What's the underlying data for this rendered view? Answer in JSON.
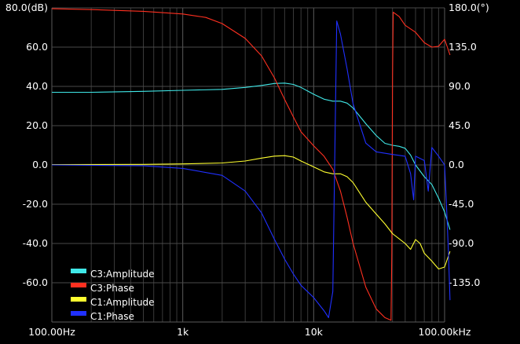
{
  "chart_data": {
    "type": "line",
    "x_scale": "log",
    "xlim": [
      100,
      100000
    ],
    "x_ticks": [
      {
        "value": 100,
        "label": "100.00Hz"
      },
      {
        "value": 1000,
        "label": "1k"
      },
      {
        "value": 10000,
        "label": "10k"
      },
      {
        "value": 100000,
        "label": "100.00kHz"
      }
    ],
    "y_left": {
      "unit_label": "80.0(dB)",
      "ylim": [
        -80,
        80
      ],
      "ticks": [
        80,
        60,
        40,
        20,
        0,
        -20,
        -40,
        -60
      ],
      "tick_labels": [
        "80.0(dB)",
        "60.0",
        "40.0",
        "20.0",
        "0.0",
        "-20.0",
        "-40.0",
        "-60.0"
      ]
    },
    "y_right": {
      "unit_label": "180.0(°)",
      "ylim": [
        -180,
        180
      ],
      "ticks": [
        180,
        135,
        90,
        45,
        0,
        -45,
        -90,
        -135
      ],
      "tick_labels": [
        "180.0(°)",
        "135.0",
        "90.0",
        "45.0",
        "0.0",
        "-45.0",
        "-90.0",
        "-135.0"
      ]
    },
    "grid": true,
    "legend_position": "bottom-left",
    "series": [
      {
        "name": "C3:Amplitude",
        "color": "#40e8e8",
        "axis": "left",
        "points": [
          [
            100,
            37
          ],
          [
            200,
            37
          ],
          [
            500,
            37.5
          ],
          [
            1000,
            38
          ],
          [
            2000,
            38.5
          ],
          [
            3000,
            39.5
          ],
          [
            4000,
            40.5
          ],
          [
            5000,
            41.5
          ],
          [
            6000,
            41.7
          ],
          [
            7000,
            41
          ],
          [
            8000,
            39.5
          ],
          [
            10000,
            36
          ],
          [
            12000,
            33.5
          ],
          [
            14000,
            32.5
          ],
          [
            16000,
            32.5
          ],
          [
            18000,
            31.5
          ],
          [
            20000,
            29
          ],
          [
            25000,
            21
          ],
          [
            30000,
            15
          ],
          [
            35000,
            11
          ],
          [
            40000,
            10
          ],
          [
            45000,
            9.5
          ],
          [
            50000,
            8.5
          ],
          [
            55000,
            5
          ],
          [
            60000,
            0
          ],
          [
            70000,
            -6
          ],
          [
            80000,
            -10
          ],
          [
            90000,
            -17
          ],
          [
            100000,
            -24
          ],
          [
            110000,
            -33
          ]
        ]
      },
      {
        "name": "C3:Phase",
        "color": "#ff3020",
        "axis": "right",
        "points": [
          [
            100,
            179
          ],
          [
            200,
            178
          ],
          [
            500,
            176
          ],
          [
            1000,
            173
          ],
          [
            1500,
            169
          ],
          [
            2000,
            162
          ],
          [
            3000,
            145
          ],
          [
            4000,
            125
          ],
          [
            5000,
            100
          ],
          [
            6000,
            75
          ],
          [
            7000,
            55
          ],
          [
            8000,
            38
          ],
          [
            10000,
            22
          ],
          [
            12000,
            10
          ],
          [
            14000,
            -5
          ],
          [
            16000,
            -30
          ],
          [
            18000,
            -60
          ],
          [
            20000,
            -90
          ],
          [
            25000,
            -140
          ],
          [
            30000,
            -165
          ],
          [
            35000,
            -175
          ],
          [
            39000,
            -178
          ],
          [
            39500,
            -100
          ],
          [
            40000,
            100
          ],
          [
            40500,
            175
          ],
          [
            45000,
            170
          ],
          [
            50000,
            160
          ],
          [
            60000,
            152
          ],
          [
            70000,
            140
          ],
          [
            80000,
            135
          ],
          [
            90000,
            136
          ],
          [
            100000,
            144
          ],
          [
            105000,
            135
          ],
          [
            110000,
            126
          ]
        ]
      },
      {
        "name": "C1:Amplitude",
        "color": "#ffff30",
        "axis": "left",
        "points": [
          [
            100,
            0.2
          ],
          [
            500,
            0.3
          ],
          [
            1000,
            0.5
          ],
          [
            2000,
            1
          ],
          [
            3000,
            2
          ],
          [
            4000,
            3.5
          ],
          [
            5000,
            4.5
          ],
          [
            6000,
            4.7
          ],
          [
            7000,
            4
          ],
          [
            8000,
            2
          ],
          [
            10000,
            -1
          ],
          [
            12000,
            -3.5
          ],
          [
            14000,
            -4.5
          ],
          [
            16000,
            -4.5
          ],
          [
            18000,
            -6
          ],
          [
            20000,
            -9
          ],
          [
            25000,
            -19
          ],
          [
            30000,
            -25
          ],
          [
            35000,
            -30
          ],
          [
            40000,
            -35
          ],
          [
            50000,
            -40
          ],
          [
            55000,
            -43
          ],
          [
            60000,
            -38
          ],
          [
            65000,
            -40
          ],
          [
            70000,
            -45
          ],
          [
            80000,
            -49
          ],
          [
            90000,
            -53
          ],
          [
            100000,
            -52
          ],
          [
            110000,
            -44
          ]
        ]
      },
      {
        "name": "C1:Phase",
        "color": "#2030ff",
        "axis": "right",
        "points": [
          [
            100,
            0
          ],
          [
            500,
            -1
          ],
          [
            1000,
            -4
          ],
          [
            2000,
            -12
          ],
          [
            3000,
            -30
          ],
          [
            4000,
            -55
          ],
          [
            5000,
            -85
          ],
          [
            6000,
            -108
          ],
          [
            7000,
            -125
          ],
          [
            8000,
            -138
          ],
          [
            10000,
            -152
          ],
          [
            12000,
            -167
          ],
          [
            13000,
            -175
          ],
          [
            14000,
            -145
          ],
          [
            15000,
            165
          ],
          [
            16000,
            150
          ],
          [
            18000,
            110
          ],
          [
            20000,
            70
          ],
          [
            25000,
            25
          ],
          [
            30000,
            15
          ],
          [
            40000,
            12
          ],
          [
            50000,
            10
          ],
          [
            55000,
            -10
          ],
          [
            58000,
            -40
          ],
          [
            60000,
            10
          ],
          [
            70000,
            5
          ],
          [
            75000,
            -30
          ],
          [
            80000,
            20
          ],
          [
            90000,
            10
          ],
          [
            100000,
            0
          ],
          [
            103000,
            -40
          ],
          [
            107000,
            -100
          ],
          [
            110000,
            -155
          ]
        ]
      }
    ]
  }
}
